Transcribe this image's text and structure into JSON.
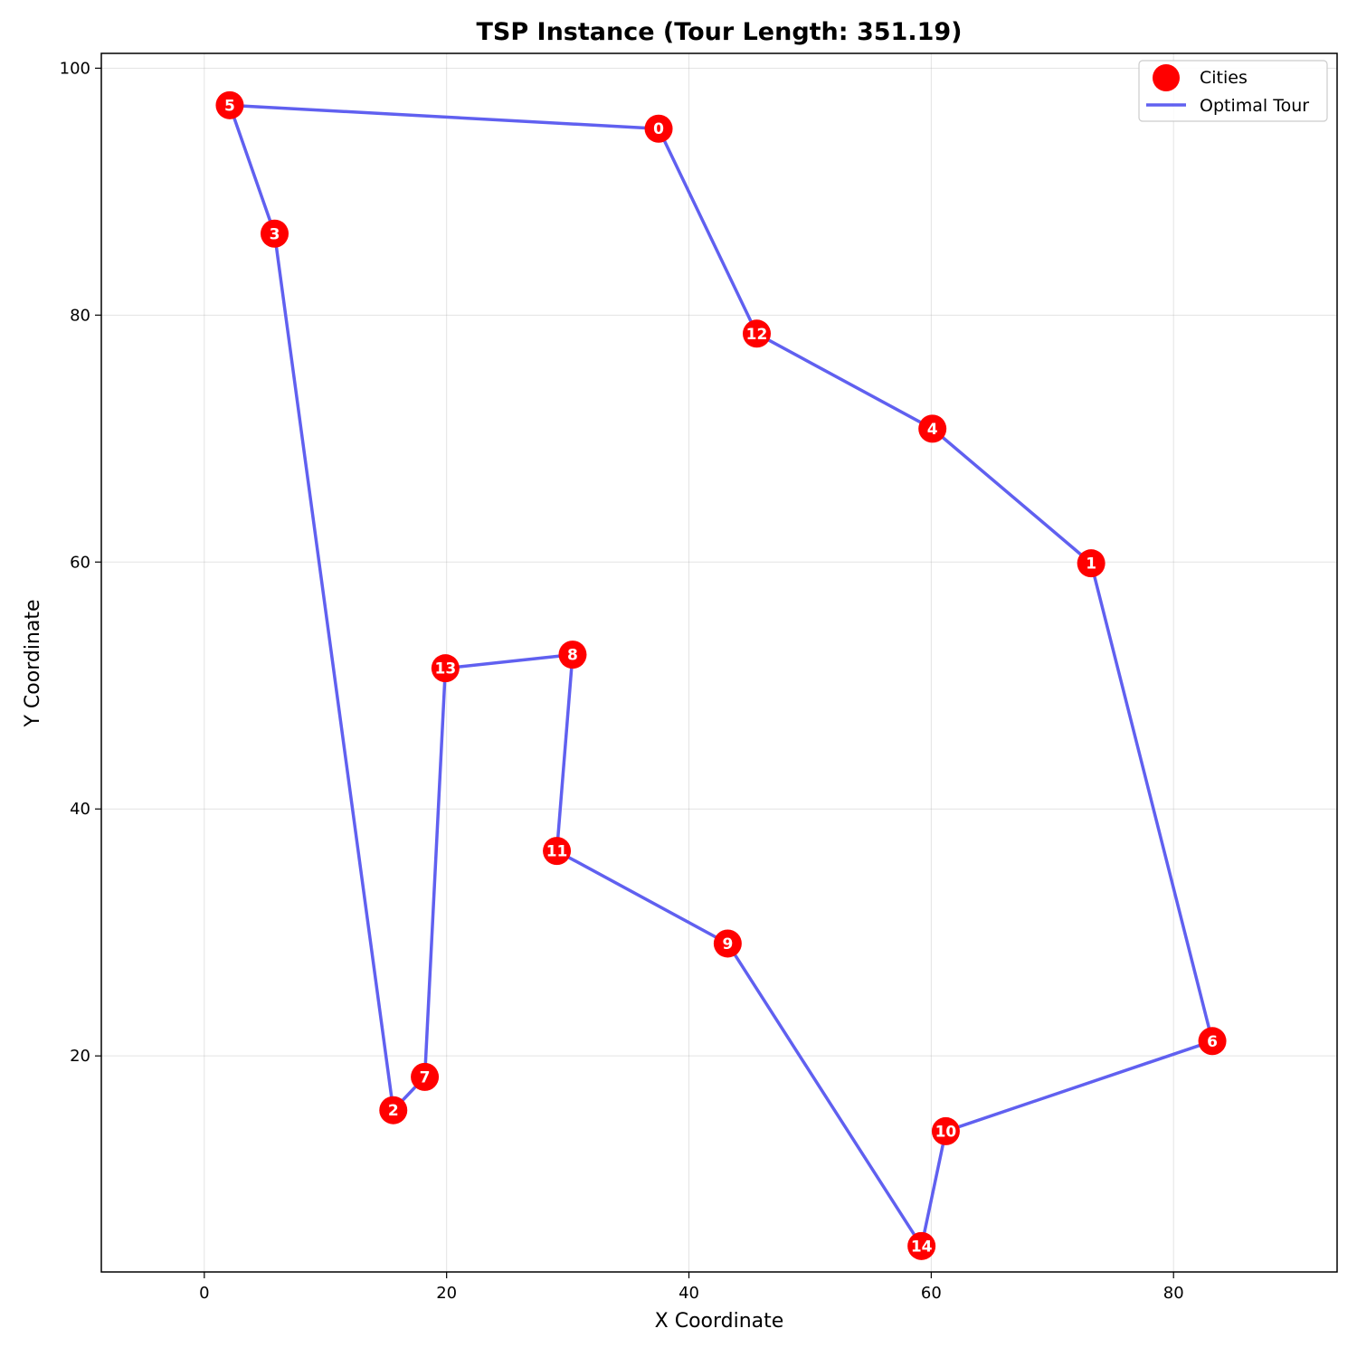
{
  "chart_data": {
    "type": "scatter",
    "title": "TSP Instance (Tour Length: 351.19)",
    "xlabel": "X Coordinate",
    "ylabel": "Y Coordinate",
    "xlim": [
      -8.5,
      93.5
    ],
    "ylim": [
      2.5,
      101.2
    ],
    "xticks": [
      0,
      20,
      40,
      60,
      80
    ],
    "yticks": [
      20,
      40,
      60,
      80,
      100
    ],
    "grid": true,
    "legend_position": "top-right",
    "colors": {
      "cities": "#ff0000",
      "tour": "#6060f0",
      "city_label": "#ffffff"
    },
    "series": [
      {
        "name": "Cities",
        "kind": "points",
        "points": [
          {
            "label": "0",
            "x": 37.5,
            "y": 95.1
          },
          {
            "label": "1",
            "x": 73.2,
            "y": 59.9
          },
          {
            "label": "2",
            "x": 15.6,
            "y": 15.6
          },
          {
            "label": "3",
            "x": 5.8,
            "y": 86.6
          },
          {
            "label": "4",
            "x": 60.1,
            "y": 70.8
          },
          {
            "label": "5",
            "x": 2.1,
            "y": 97.0
          },
          {
            "label": "6",
            "x": 83.2,
            "y": 21.2
          },
          {
            "label": "7",
            "x": 18.2,
            "y": 18.3
          },
          {
            "label": "8",
            "x": 30.4,
            "y": 52.5
          },
          {
            "label": "9",
            "x": 43.2,
            "y": 29.1
          },
          {
            "label": "10",
            "x": 61.2,
            "y": 13.9
          },
          {
            "label": "11",
            "x": 29.1,
            "y": 36.6
          },
          {
            "label": "12",
            "x": 45.6,
            "y": 78.5
          },
          {
            "label": "13",
            "x": 19.9,
            "y": 51.4
          },
          {
            "label": "14",
            "x": 59.2,
            "y": 4.6
          }
        ]
      },
      {
        "name": "Optimal Tour",
        "kind": "line",
        "order": [
          "0",
          "12",
          "4",
          "1",
          "6",
          "10",
          "14",
          "9",
          "11",
          "8",
          "13",
          "7",
          "2",
          "3",
          "5",
          "0"
        ]
      }
    ]
  }
}
